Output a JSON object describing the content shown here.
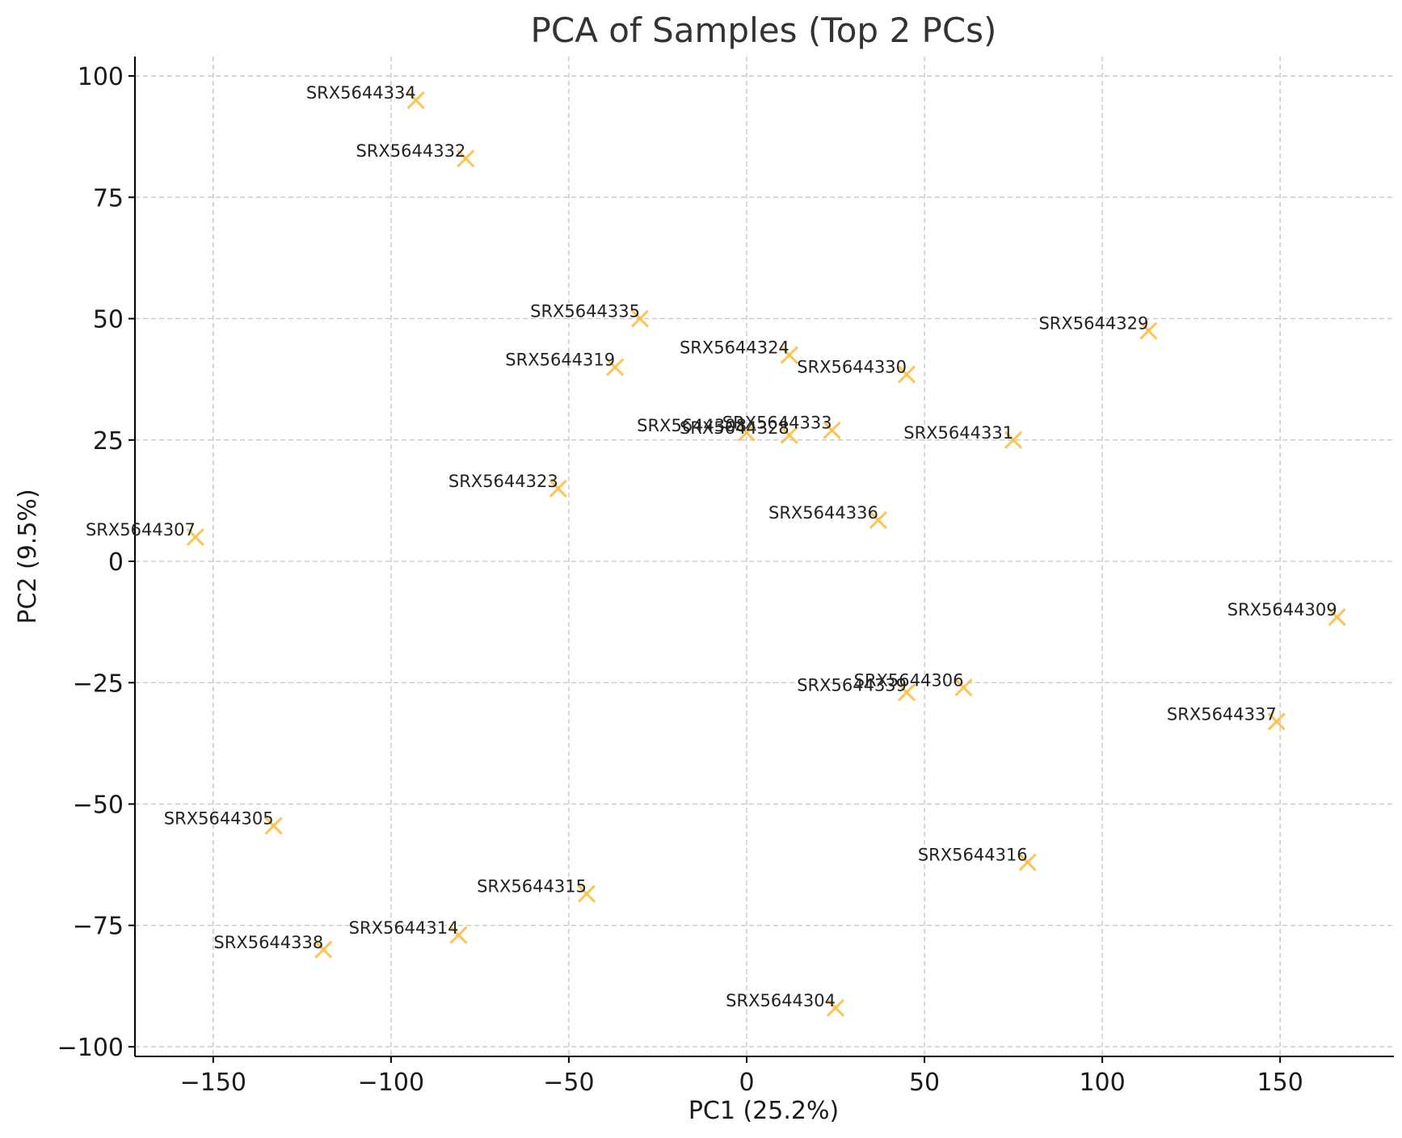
{
  "chart_data": {
    "type": "scatter",
    "title": "PCA of Samples (Top 2 PCs)",
    "xlabel": "PC1 (25.2%)",
    "ylabel": "PC2 (9.5%)",
    "xlim": [
      -172,
      182
    ],
    "ylim": [
      -102,
      104
    ],
    "xticks": [
      -150,
      -100,
      -50,
      0,
      50,
      100,
      150
    ],
    "yticks": [
      -100,
      -75,
      -50,
      -25,
      0,
      25,
      50,
      75,
      100
    ],
    "xtick_labels": [
      "−150",
      "−100",
      "−50",
      "0",
      "50",
      "100",
      "150"
    ],
    "ytick_labels": [
      "−100",
      "−75",
      "−50",
      "−25",
      "0",
      "25",
      "50",
      "75",
      "100"
    ],
    "grid": true,
    "marker": "x",
    "marker_color": "#f9c14a",
    "points": [
      {
        "label": "SRX5644334",
        "x": -93,
        "y": 95
      },
      {
        "label": "SRX5644332",
        "x": -79,
        "y": 83
      },
      {
        "label": "SRX5644335",
        "x": -30,
        "y": 50
      },
      {
        "label": "SRX5644319",
        "x": -37,
        "y": 40
      },
      {
        "label": "SRX5644324",
        "x": 12,
        "y": 42.5
      },
      {
        "label": "SRX5644330",
        "x": 45,
        "y": 38.5
      },
      {
        "label": "SRX5644329",
        "x": 113,
        "y": 47.5
      },
      {
        "label": "SRX5644308",
        "x": 0,
        "y": 26.5
      },
      {
        "label": "SRX5644328",
        "x": 12,
        "y": 26
      },
      {
        "label": "SRX5644333",
        "x": 24,
        "y": 27
      },
      {
        "label": "SRX5644331",
        "x": 75,
        "y": 25
      },
      {
        "label": "SRX5644323",
        "x": -53,
        "y": 15
      },
      {
        "label": "SRX5644336",
        "x": 37,
        "y": 8.5
      },
      {
        "label": "SRX5644307",
        "x": -155,
        "y": 5
      },
      {
        "label": "SRX5644309",
        "x": 166,
        "y": -11.5
      },
      {
        "label": "SRX5644306",
        "x": 61,
        "y": -26
      },
      {
        "label": "SRX5644339",
        "x": 45,
        "y": -27
      },
      {
        "label": "SRX5644337",
        "x": 149,
        "y": -33
      },
      {
        "label": "SRX5644305",
        "x": -133,
        "y": -54.5
      },
      {
        "label": "SRX5644316",
        "x": 79,
        "y": -62
      },
      {
        "label": "SRX5644315",
        "x": -45,
        "y": -68.5
      },
      {
        "label": "SRX5644314",
        "x": -81,
        "y": -77
      },
      {
        "label": "SRX5644338",
        "x": -119,
        "y": -80
      },
      {
        "label": "SRX5644304",
        "x": 25,
        "y": -92
      }
    ]
  }
}
